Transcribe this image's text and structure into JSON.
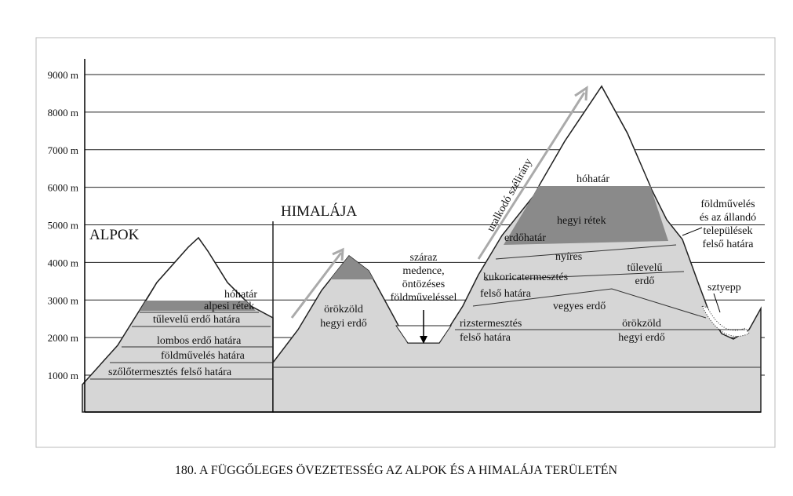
{
  "axis": {
    "ticks": [
      "1000 m",
      "2000 m",
      "3000 m",
      "4000 m",
      "5000 m",
      "6000 m",
      "7000 m",
      "8000 m",
      "9000 m"
    ]
  },
  "regions": {
    "alps": "ALPOK",
    "himalaya": "HIMALÁJA"
  },
  "alps_labels": [
    "hóhatár",
    "alpesi rétek",
    "tűlevelű erdő határa",
    "lombos erdő határa",
    "földművelés határa",
    "szőlőtermesztés felső határa"
  ],
  "himalaya_labels": {
    "evergreen_left": [
      "örökzöld",
      "hegyi erdő"
    ],
    "dry_basin": [
      "száraz",
      "medence,",
      "öntözéses",
      "földműveléssel"
    ],
    "snow_line": "hóhatár",
    "meadows": "hegyi rétek",
    "forest_line": "erdőhatár",
    "birch": "nyíres",
    "maize": [
      "kukoricatermesztés",
      "felső határa"
    ],
    "mixed": "vegyes erdő",
    "rice": [
      "rizstermesztés",
      "felső határa"
    ],
    "conifer": [
      "tűlevelű",
      "erdő"
    ],
    "evergreen_right": [
      "örökzöld",
      "hegyi erdő"
    ],
    "steppe": "sztyepp",
    "settlement": [
      "földművelés",
      "és az állandó",
      "települések",
      "felső határa"
    ]
  },
  "wind": "uralkodó szélirány",
  "caption": "180. A FÜGGŐLEGES ÖVEZETESSÉG AZ ALPOK ÉS A HIMALÁJA TERÜLETÉN"
}
